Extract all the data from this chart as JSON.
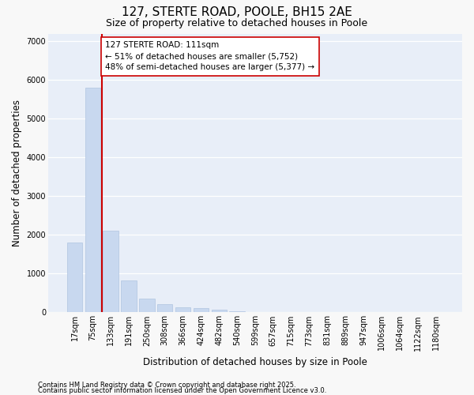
{
  "title1": "127, STERTE ROAD, POOLE, BH15 2AE",
  "title2": "Size of property relative to detached houses in Poole",
  "xlabel": "Distribution of detached houses by size in Poole",
  "ylabel": "Number of detached properties",
  "categories": [
    "17sqm",
    "75sqm",
    "133sqm",
    "191sqm",
    "250sqm",
    "308sqm",
    "366sqm",
    "424sqm",
    "482sqm",
    "540sqm",
    "599sqm",
    "657sqm",
    "715sqm",
    "773sqm",
    "831sqm",
    "889sqm",
    "947sqm",
    "1006sqm",
    "1064sqm",
    "1122sqm",
    "1180sqm"
  ],
  "values": [
    1800,
    5800,
    2100,
    820,
    360,
    210,
    140,
    100,
    65,
    35,
    18,
    8,
    3,
    1,
    0,
    0,
    0,
    0,
    0,
    0,
    0
  ],
  "bar_color": "#c8d8ef",
  "bar_edge_color": "#b0c4e0",
  "vline_x": 1.5,
  "vline_color": "#cc0000",
  "annotation_text": "127 STERTE ROAD: 111sqm\n← 51% of detached houses are smaller (5,752)\n48% of semi-detached houses are larger (5,377) →",
  "annotation_box_facecolor": "#ffffff",
  "annotation_box_edgecolor": "#cc0000",
  "ylim": [
    0,
    7200
  ],
  "yticks": [
    0,
    1000,
    2000,
    3000,
    4000,
    5000,
    6000,
    7000
  ],
  "fig_facecolor": "#f8f8f8",
  "ax_facecolor": "#e8eef8",
  "grid_color": "#ffffff",
  "footer1": "Contains HM Land Registry data © Crown copyright and database right 2025.",
  "footer2": "Contains public sector information licensed under the Open Government Licence v3.0.",
  "title_fontsize": 11,
  "subtitle_fontsize": 9,
  "axis_label_fontsize": 8.5,
  "tick_fontsize": 7,
  "annotation_fontsize": 7.5,
  "footer_fontsize": 6
}
